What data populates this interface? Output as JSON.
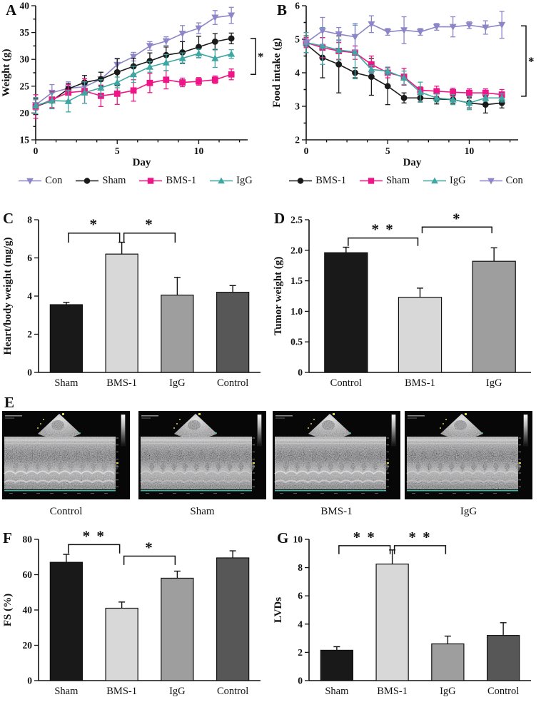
{
  "panel_letters": {
    "a": "A",
    "b": "B",
    "c": "C",
    "d": "D",
    "e": "E",
    "f": "F",
    "g": "G"
  },
  "echo": {
    "items": [
      {
        "label": "Control"
      },
      {
        "label": "Sham"
      },
      {
        "label": "BMS-1"
      },
      {
        "label": "IgG"
      }
    ]
  },
  "colors": {
    "con": "#8c86c8",
    "sham_line": "#1a1a1a",
    "bms1_line": "#ee1687",
    "igg_line": "#3fa7a2",
    "bar_black": "#191919",
    "bar_lightgray": "#d8d8d8",
    "bar_midgray": "#9e9e9e",
    "bar_darkgray": "#575757",
    "ecg_baseline": "#27c3ae"
  },
  "chart_data": [
    {
      "panel": "A",
      "type": "line",
      "title": "",
      "xlabel": "Day",
      "ylabel": "Weight (g)",
      "xlim": [
        0,
        13
      ],
      "ylim": [
        15,
        40
      ],
      "xticks": [
        0,
        5,
        10
      ],
      "xminor_step": 1.25,
      "yticks": [
        15,
        20,
        25,
        30,
        35,
        40
      ],
      "yminor_step": 2.5,
      "x": [
        0,
        1,
        2,
        3,
        4,
        5,
        6,
        7,
        8,
        9,
        10,
        11,
        12
      ],
      "series": [
        {
          "name": "Con",
          "color": "#8c86c8",
          "marker": "triangle-down",
          "values": [
            21.5,
            23.8,
            24.6,
            24.9,
            26.3,
            29.0,
            30.5,
            32.5,
            33.4,
            34.8,
            35.8,
            37.8,
            38.2
          ],
          "errors": [
            1.0,
            1.5,
            1.2,
            1.5,
            1.3,
            1.2,
            0.8,
            0.8,
            0.8,
            1.5,
            1.0,
            1.3,
            1.5
          ]
        },
        {
          "name": "Sham",
          "color": "#1a1a1a",
          "marker": "circle",
          "values": [
            21.2,
            22.3,
            24.5,
            25.7,
            26.3,
            27.6,
            28.7,
            29.7,
            30.8,
            31.3,
            32.3,
            33.3,
            33.9
          ],
          "errors": [
            1.5,
            1.5,
            1.0,
            1.3,
            1.3,
            2.5,
            1.5,
            1.5,
            1.5,
            2.0,
            2.0,
            1.5,
            1.0
          ]
        },
        {
          "name": "BMS-1",
          "color": "#ee1687",
          "marker": "square",
          "values": [
            21.2,
            22.5,
            23.8,
            24.1,
            23.2,
            23.6,
            24.2,
            25.6,
            26.2,
            25.7,
            25.9,
            26.2,
            27.2
          ],
          "errors": [
            2.2,
            1.5,
            1.5,
            2.3,
            2.0,
            2.0,
            2.0,
            1.8,
            1.7,
            0.8,
            0.7,
            0.7,
            1.0
          ]
        },
        {
          "name": "IgG",
          "color": "#3fa7a2",
          "marker": "triangle-up",
          "values": [
            21.4,
            22.3,
            22.2,
            23.8,
            24.7,
            25.7,
            27.2,
            28.6,
            29.4,
            30.2,
            31.1,
            30.2,
            31.0
          ],
          "errors": [
            1.5,
            1.5,
            2.0,
            2.0,
            1.5,
            1.0,
            1.5,
            1.0,
            1.5,
            1.0,
            0.8,
            1.7,
            0.8
          ]
        }
      ],
      "legend_order": [
        "Con",
        "Sham",
        "BMS-1",
        "IgG"
      ],
      "sig_bracket": {
        "y1": 33.9,
        "y2": 27.2,
        "label": "*"
      }
    },
    {
      "panel": "B",
      "type": "line",
      "title": "",
      "xlabel": "Day",
      "ylabel": "Food intake (g)",
      "xlim": [
        0,
        13
      ],
      "ylim": [
        2,
        6
      ],
      "xticks": [
        0,
        5,
        10
      ],
      "xminor_step": 1.25,
      "yticks": [
        2,
        3,
        4,
        5,
        6
      ],
      "yminor_step": 0.5,
      "x": [
        0,
        1,
        2,
        3,
        4,
        5,
        6,
        7,
        8,
        9,
        10,
        11,
        12
      ],
      "series": [
        {
          "name": "BMS-1",
          "color": "#1a1a1a",
          "marker": "circle",
          "values": [
            4.85,
            4.45,
            4.25,
            4.0,
            3.88,
            3.6,
            3.25,
            3.25,
            3.22,
            3.2,
            3.1,
            3.05,
            3.1
          ],
          "errors": [
            0.25,
            0.6,
            0.85,
            0.15,
            0.55,
            0.55,
            0.15,
            0.12,
            0.15,
            0.12,
            0.15,
            0.25,
            0.15
          ]
        },
        {
          "name": "Sham",
          "color": "#ee1687",
          "marker": "square",
          "values": [
            4.9,
            4.75,
            4.65,
            4.6,
            4.25,
            4.0,
            3.88,
            3.48,
            3.45,
            3.42,
            3.4,
            3.4,
            3.35
          ],
          "errors": [
            0.15,
            0.3,
            0.25,
            0.2,
            0.25,
            0.15,
            0.25,
            0.1,
            0.15,
            0.12,
            0.12,
            0.12,
            0.15
          ]
        },
        {
          "name": "IgG",
          "color": "#3fa7a2",
          "marker": "triangle-up",
          "values": [
            4.9,
            4.8,
            4.68,
            4.62,
            4.1,
            4.05,
            3.85,
            3.42,
            3.25,
            3.2,
            3.1,
            3.25,
            3.25
          ],
          "errors": [
            0.3,
            0.55,
            0.3,
            0.8,
            0.12,
            0.12,
            0.2,
            0.3,
            0.12,
            0.15,
            0.2,
            0.1,
            0.12
          ]
        },
        {
          "name": "Con",
          "color": "#8c86c8",
          "marker": "triangle-down",
          "values": [
            4.9,
            5.25,
            5.15,
            5.07,
            5.45,
            5.22,
            5.27,
            5.22,
            5.37,
            5.37,
            5.42,
            5.35,
            5.43
          ],
          "errors": [
            0.12,
            0.4,
            0.2,
            0.4,
            0.25,
            0.1,
            0.4,
            0.1,
            0.1,
            0.3,
            0.1,
            0.2,
            0.4
          ]
        }
      ],
      "legend_order": [
        "BMS-1",
        "Sham",
        "IgG",
        "Con"
      ],
      "sig_bracket": {
        "y1": 5.4,
        "y2": 3.3,
        "label": "*"
      }
    },
    {
      "panel": "C",
      "type": "bar",
      "ylabel": "Heart/body weight (mg/g)",
      "ylim": [
        0,
        8
      ],
      "yticks": [
        "0",
        "2",
        "4",
        "6",
        "8"
      ],
      "categories": [
        "Sham",
        "BMS-1",
        "IgG",
        "Control"
      ],
      "values": [
        3.55,
        6.2,
        4.05,
        4.2
      ],
      "errors": [
        0.12,
        0.62,
        0.93,
        0.35
      ],
      "colors": [
        "#191919",
        "#d8d8d8",
        "#9e9e9e",
        "#575757"
      ],
      "brackets": [
        {
          "x1": 0,
          "x2": 1,
          "y": 7.3,
          "drop": 0.5,
          "label": "*"
        },
        {
          "x1": 1,
          "x2": 2,
          "y": 7.3,
          "drop": 0.5,
          "label": "*"
        }
      ]
    },
    {
      "panel": "D",
      "type": "bar",
      "ylabel": "Tumor weight (g)",
      "ylim": [
        0,
        2.5
      ],
      "yticks": [
        "0",
        "0.5",
        "1.0",
        "1.5",
        "2.0",
        "2.5"
      ],
      "categories": [
        "Control",
        "BMS-1",
        "IgG"
      ],
      "values": [
        1.96,
        1.23,
        1.82
      ],
      "errors": [
        0.09,
        0.15,
        0.22
      ],
      "colors": [
        "#191919",
        "#d8d8d8",
        "#9e9e9e"
      ],
      "brackets": [
        {
          "x1": 0,
          "x2": 1,
          "y": 2.2,
          "drop": 0.13,
          "label": "* *"
        },
        {
          "x1": 1,
          "x2": 2,
          "y": 2.38,
          "drop": 0.1,
          "label": "*"
        }
      ]
    },
    {
      "panel": "F",
      "type": "bar",
      "ylabel": "FS (%)",
      "ylim": [
        0,
        80
      ],
      "yticks": [
        "0",
        "20",
        "40",
        "60",
        "80"
      ],
      "categories": [
        "Sham",
        "BMS-1",
        "IgG",
        "Control"
      ],
      "values": [
        67,
        41,
        58,
        69.5
      ],
      "errors": [
        4.5,
        3.5,
        4,
        4
      ],
      "colors": [
        "#191919",
        "#d8d8d8",
        "#9e9e9e",
        "#575757"
      ],
      "brackets": [
        {
          "x1": 0,
          "x2": 1,
          "y": 77,
          "drop": 5,
          "label": "* *"
        },
        {
          "x1": 1,
          "x2": 2,
          "y": 70.5,
          "drop": 5,
          "label": "*"
        }
      ]
    },
    {
      "panel": "G",
      "type": "bar",
      "ylabel": "LVDs",
      "ylim": [
        0,
        10
      ],
      "yticks": [
        "0",
        "2",
        "4",
        "6",
        "8",
        "10"
      ],
      "categories": [
        "Sham",
        "BMS-1",
        "IgG",
        "Control"
      ],
      "values": [
        2.15,
        8.25,
        2.6,
        3.2
      ],
      "errors": [
        0.25,
        1.0,
        0.55,
        0.9
      ],
      "colors": [
        "#191919",
        "#d8d8d8",
        "#9e9e9e",
        "#575757"
      ],
      "brackets": [
        {
          "x1": 0,
          "x2": 1,
          "y": 9.55,
          "drop": 0.6,
          "label": "* *"
        },
        {
          "x1": 1,
          "x2": 2,
          "y": 9.55,
          "drop": 0.6,
          "label": "* *"
        }
      ]
    }
  ]
}
